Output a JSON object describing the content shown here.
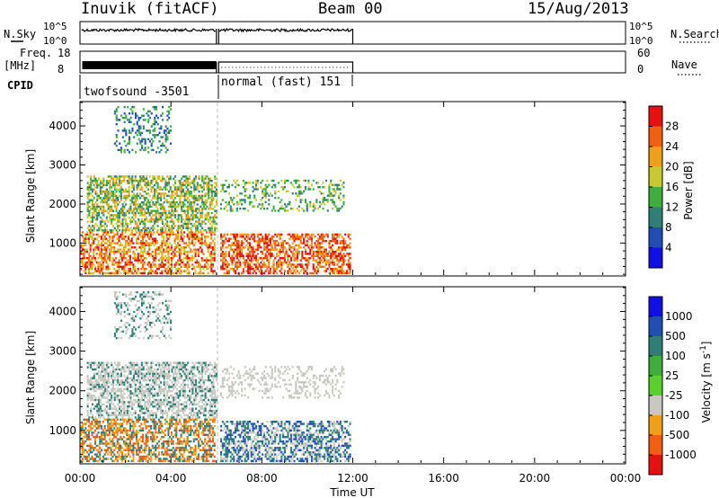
{
  "header": {
    "station": "Inuvik (fitACF)",
    "beam": "Beam 00",
    "date": "15/Aug/2013"
  },
  "panels": {
    "nsky_label": "N.Sky",
    "nsky_ticks": [
      "10^5",
      "10^0"
    ],
    "nsearch_label": "N.Search",
    "freq_label_line1": "Freq.",
    "freq_label_line2": "[MHz]",
    "freq_ticks": [
      "18",
      "8"
    ],
    "nave_ticks": [
      "60",
      "0"
    ],
    "nave_label": "Nave",
    "cpid_label": "CPID",
    "cpid_segments": [
      {
        "label": "twofsound -3501",
        "start_h": 0,
        "end_h": 6.0
      },
      {
        "label": "normal (fast) 151",
        "start_h": 6.1,
        "end_h": 12.0
      }
    ]
  },
  "x_axis": {
    "label": "Time UT",
    "ticks": [
      "00:00",
      "04:00",
      "08:00",
      "12:00",
      "16:00",
      "20:00",
      "00:00"
    ],
    "range_hours": [
      0,
      24
    ],
    "data_end_hours": 12.0,
    "gap_hours": 6.05
  },
  "chart_data": [
    {
      "type": "heatmap",
      "title": "",
      "quantity": "Power",
      "ylabel": "Slant Range [km]",
      "ylim": [
        180,
        4600
      ],
      "yticks": [
        "1000",
        "2000",
        "3000",
        "4000"
      ],
      "colorbar_label": "Power [dB]",
      "colorbar_ticks": [
        "4",
        "8",
        "12",
        "16",
        "20",
        "24",
        "28"
      ],
      "colorbar_colors": [
        "#1010e6",
        "#1f4fb5",
        "#2f7f77",
        "#3fae3f",
        "#c8c832",
        "#f0a018",
        "#f06010",
        "#e61010"
      ],
      "xrange_hours": [
        0,
        12
      ],
      "echo_regions": [
        {
          "t0": 0.0,
          "t1": 5.9,
          "r0": 200,
          "r1": 1300,
          "levels": [
            24,
            28,
            20,
            16
          ]
        },
        {
          "t0": 0.3,
          "t1": 6.0,
          "r0": 1300,
          "r1": 2700,
          "levels": [
            16,
            8,
            20,
            12
          ]
        },
        {
          "t0": 6.1,
          "t1": 11.9,
          "r0": 200,
          "r1": 1200,
          "levels": [
            28,
            24,
            20
          ]
        },
        {
          "t0": 6.1,
          "t1": 11.6,
          "r0": 1800,
          "r1": 2600,
          "levels": [
            16,
            12,
            8
          ]
        },
        {
          "t0": 1.5,
          "t1": 4.0,
          "r0": 3300,
          "r1": 4500,
          "levels": [
            8,
            12,
            4
          ]
        }
      ]
    },
    {
      "type": "heatmap",
      "title": "",
      "quantity": "Velocity",
      "ylabel": "Slant Range [km]",
      "ylim": [
        180,
        4600
      ],
      "yticks": [
        "1000",
        "2000",
        "3000",
        "4000"
      ],
      "colorbar_label": "Velocity [m s^-1]",
      "colorbar_ticks": [
        "1000",
        "500",
        "100",
        "25",
        "-25",
        "-100",
        "-500",
        "-1000"
      ],
      "colorbar_colors": [
        "#1010e6",
        "#1f4fb5",
        "#2f7f77",
        "#3fae3f",
        "#5ad02a",
        "#c8c8c0",
        "#f0a018",
        "#f06010",
        "#e61010"
      ],
      "xrange_hours": [
        0,
        12
      ],
      "echo_regions": [
        {
          "t0": 0.0,
          "t1": 5.9,
          "r0": 200,
          "r1": 1300,
          "levels": [
            -500,
            -100,
            100
          ]
        },
        {
          "t0": 0.3,
          "t1": 6.0,
          "r0": 1300,
          "r1": 2700,
          "levels": [
            0,
            0,
            100
          ]
        },
        {
          "t0": 6.1,
          "t1": 11.9,
          "r0": 200,
          "r1": 1200,
          "levels": [
            100,
            500,
            0
          ]
        },
        {
          "t0": 6.1,
          "t1": 11.6,
          "r0": 1800,
          "r1": 2600,
          "levels": [
            0,
            0
          ]
        },
        {
          "t0": 1.5,
          "t1": 4.0,
          "r0": 3300,
          "r1": 4500,
          "levels": [
            0,
            100
          ]
        }
      ]
    }
  ]
}
